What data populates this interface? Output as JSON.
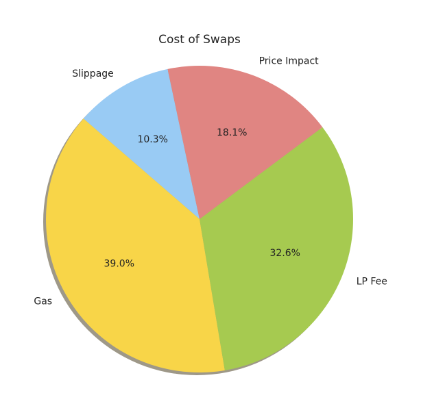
{
  "chart_data": {
    "type": "pie",
    "title": "Cost of Swaps",
    "categories": [
      "Slippage",
      "Gas",
      "LP Fee",
      "Price Impact"
    ],
    "values": [
      10.3,
      39.0,
      32.6,
      18.1
    ],
    "value_labels": [
      "10.3%",
      "39.0%",
      "32.6%",
      "18.1%"
    ],
    "colors": [
      "#99cbf4",
      "#f8d548",
      "#a6ca50",
      "#e08582"
    ],
    "shadow": true
  }
}
